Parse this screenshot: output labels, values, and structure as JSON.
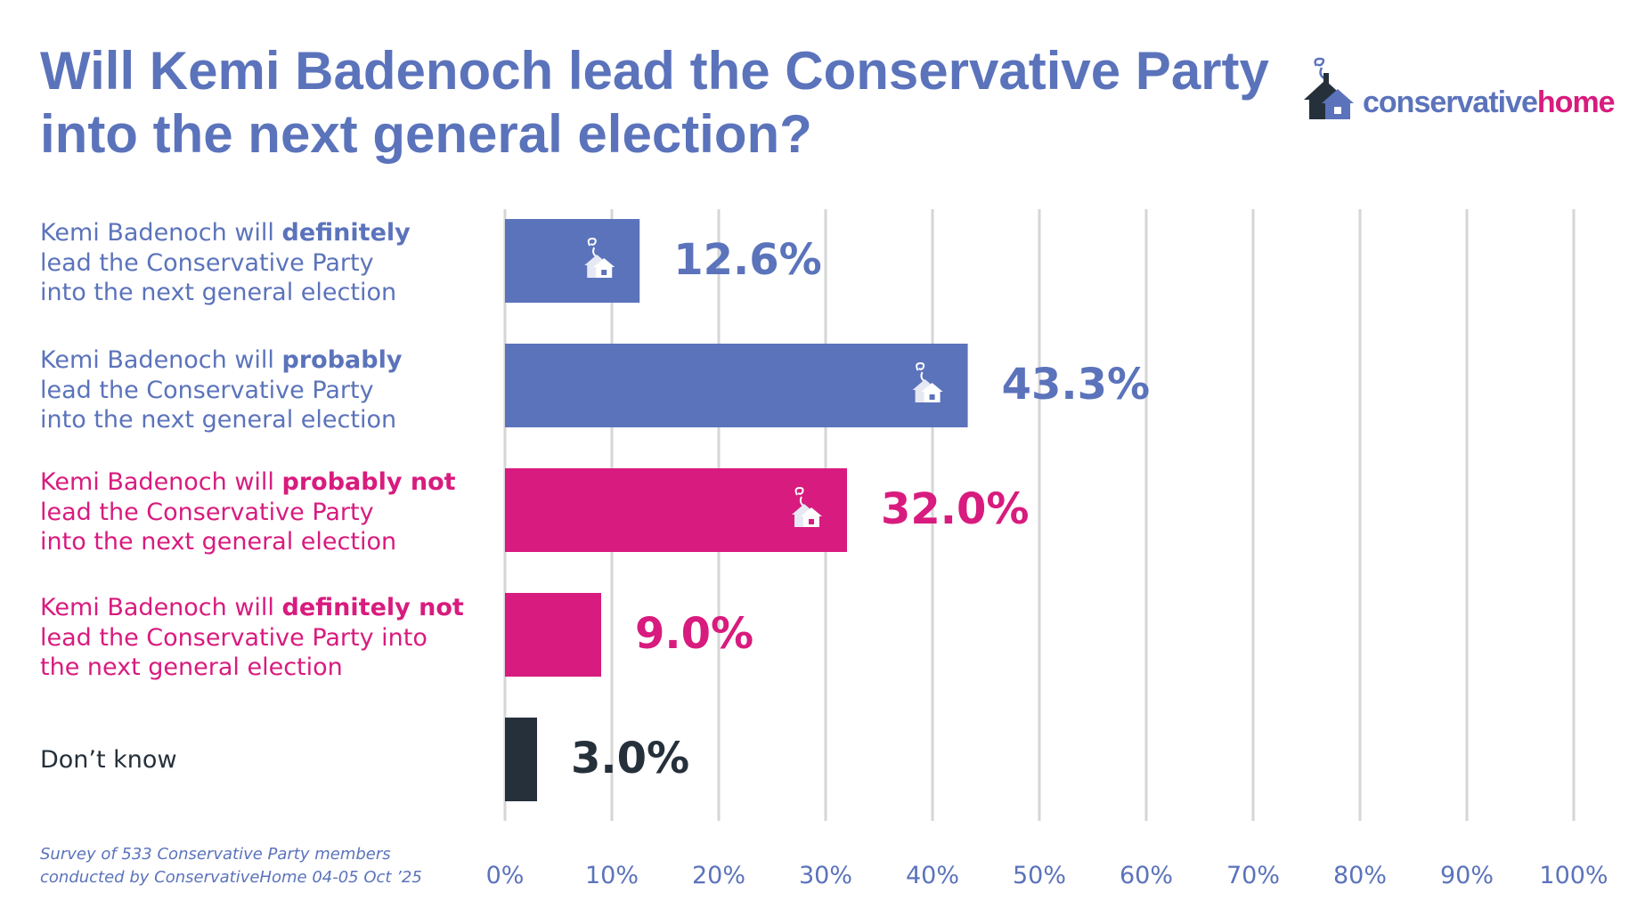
{
  "colors": {
    "blue": "#5b73bb",
    "pink": "#d81b7e",
    "dark": "#25303b",
    "grid": "#d6d6d6"
  },
  "title": {
    "line1": "Will Kemi Badenoch lead the Conservative Party",
    "line2": "into the next general election?"
  },
  "logo": {
    "text_part1": "conservative",
    "text_part2": "home",
    "icon": "house-with-smoke-icon"
  },
  "footnote": {
    "line1": "Survey of 533 Conservative Party members",
    "line2": "conducted by ConservativeHome 04-05 Oct ’25"
  },
  "rows": [
    {
      "prefix": "Kemi Badenoch will ",
      "bold": "definitely",
      "line2": "lead the Conservative Party",
      "line3": "into the next general election",
      "color": "#5b73bb"
    },
    {
      "prefix": "Kemi Badenoch will ",
      "bold": "probably",
      "line2": "lead the Conservative Party",
      "line3": "into the next general election",
      "color": "#5b73bb"
    },
    {
      "prefix": "Kemi Badenoch will ",
      "bold": "probably not",
      "line2": "lead the Conservative Party",
      "line3": "into the next general election",
      "color": "#d81b7e"
    },
    {
      "prefix": "Kemi Badenoch will ",
      "bold": "definitely not",
      "line2": "lead the Conservative Party into",
      "line3": "the next general election",
      "color": "#d81b7e"
    },
    {
      "prefix": "Don’t know",
      "bold": "",
      "line2": "",
      "line3": "",
      "color": "#25303b"
    }
  ],
  "chart_data": {
    "type": "bar",
    "orientation": "horizontal",
    "title": "Will Kemi Badenoch lead the Conservative Party into the next general election?",
    "categories": [
      "Kemi Badenoch will definitely lead the Conservative Party into the next general election",
      "Kemi Badenoch will probably lead the Conservative Party into the next general election",
      "Kemi Badenoch will probably not lead the Conservative Party into the next general election",
      "Kemi Badenoch will definitely not lead the Conservative Party into the next general election",
      "Don’t know"
    ],
    "values": [
      12.6,
      43.3,
      32.0,
      9.0,
      3.0
    ],
    "value_labels": [
      "12.6%",
      "43.3%",
      "32.0%",
      "9.0%",
      "3.0%"
    ],
    "bar_colors": [
      "#5b73bb",
      "#5b73bb",
      "#d81b7e",
      "#d81b7e",
      "#25303b"
    ],
    "xlim": [
      0,
      100
    ],
    "xticks": [
      0,
      10,
      20,
      30,
      40,
      50,
      60,
      70,
      80,
      90,
      100
    ],
    "xtick_labels": [
      "0%",
      "10%",
      "20%",
      "30%",
      "40%",
      "50%",
      "60%",
      "70%",
      "80%",
      "90%",
      "100%"
    ],
    "grid": true,
    "bar_icons": [
      true,
      true,
      true,
      false,
      false
    ]
  }
}
